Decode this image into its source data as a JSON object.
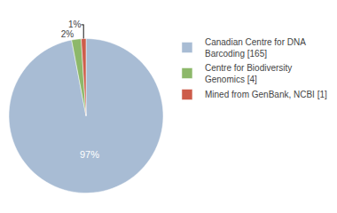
{
  "chart_data": {
    "type": "pie",
    "categories": [
      "Canadian Centre for DNA\nBarcoding [165]",
      "Centre for Biodiversity\nGenomics [4]",
      "Mined from GenBank, NCBI [1]"
    ],
    "values": [
      97,
      2,
      1
    ],
    "value_labels": [
      "97%",
      "2%",
      "1%"
    ],
    "colors": [
      "#a8bcd4",
      "#8db86a",
      "#cd5c4a"
    ],
    "data_labels": true,
    "legend": "upper right"
  }
}
